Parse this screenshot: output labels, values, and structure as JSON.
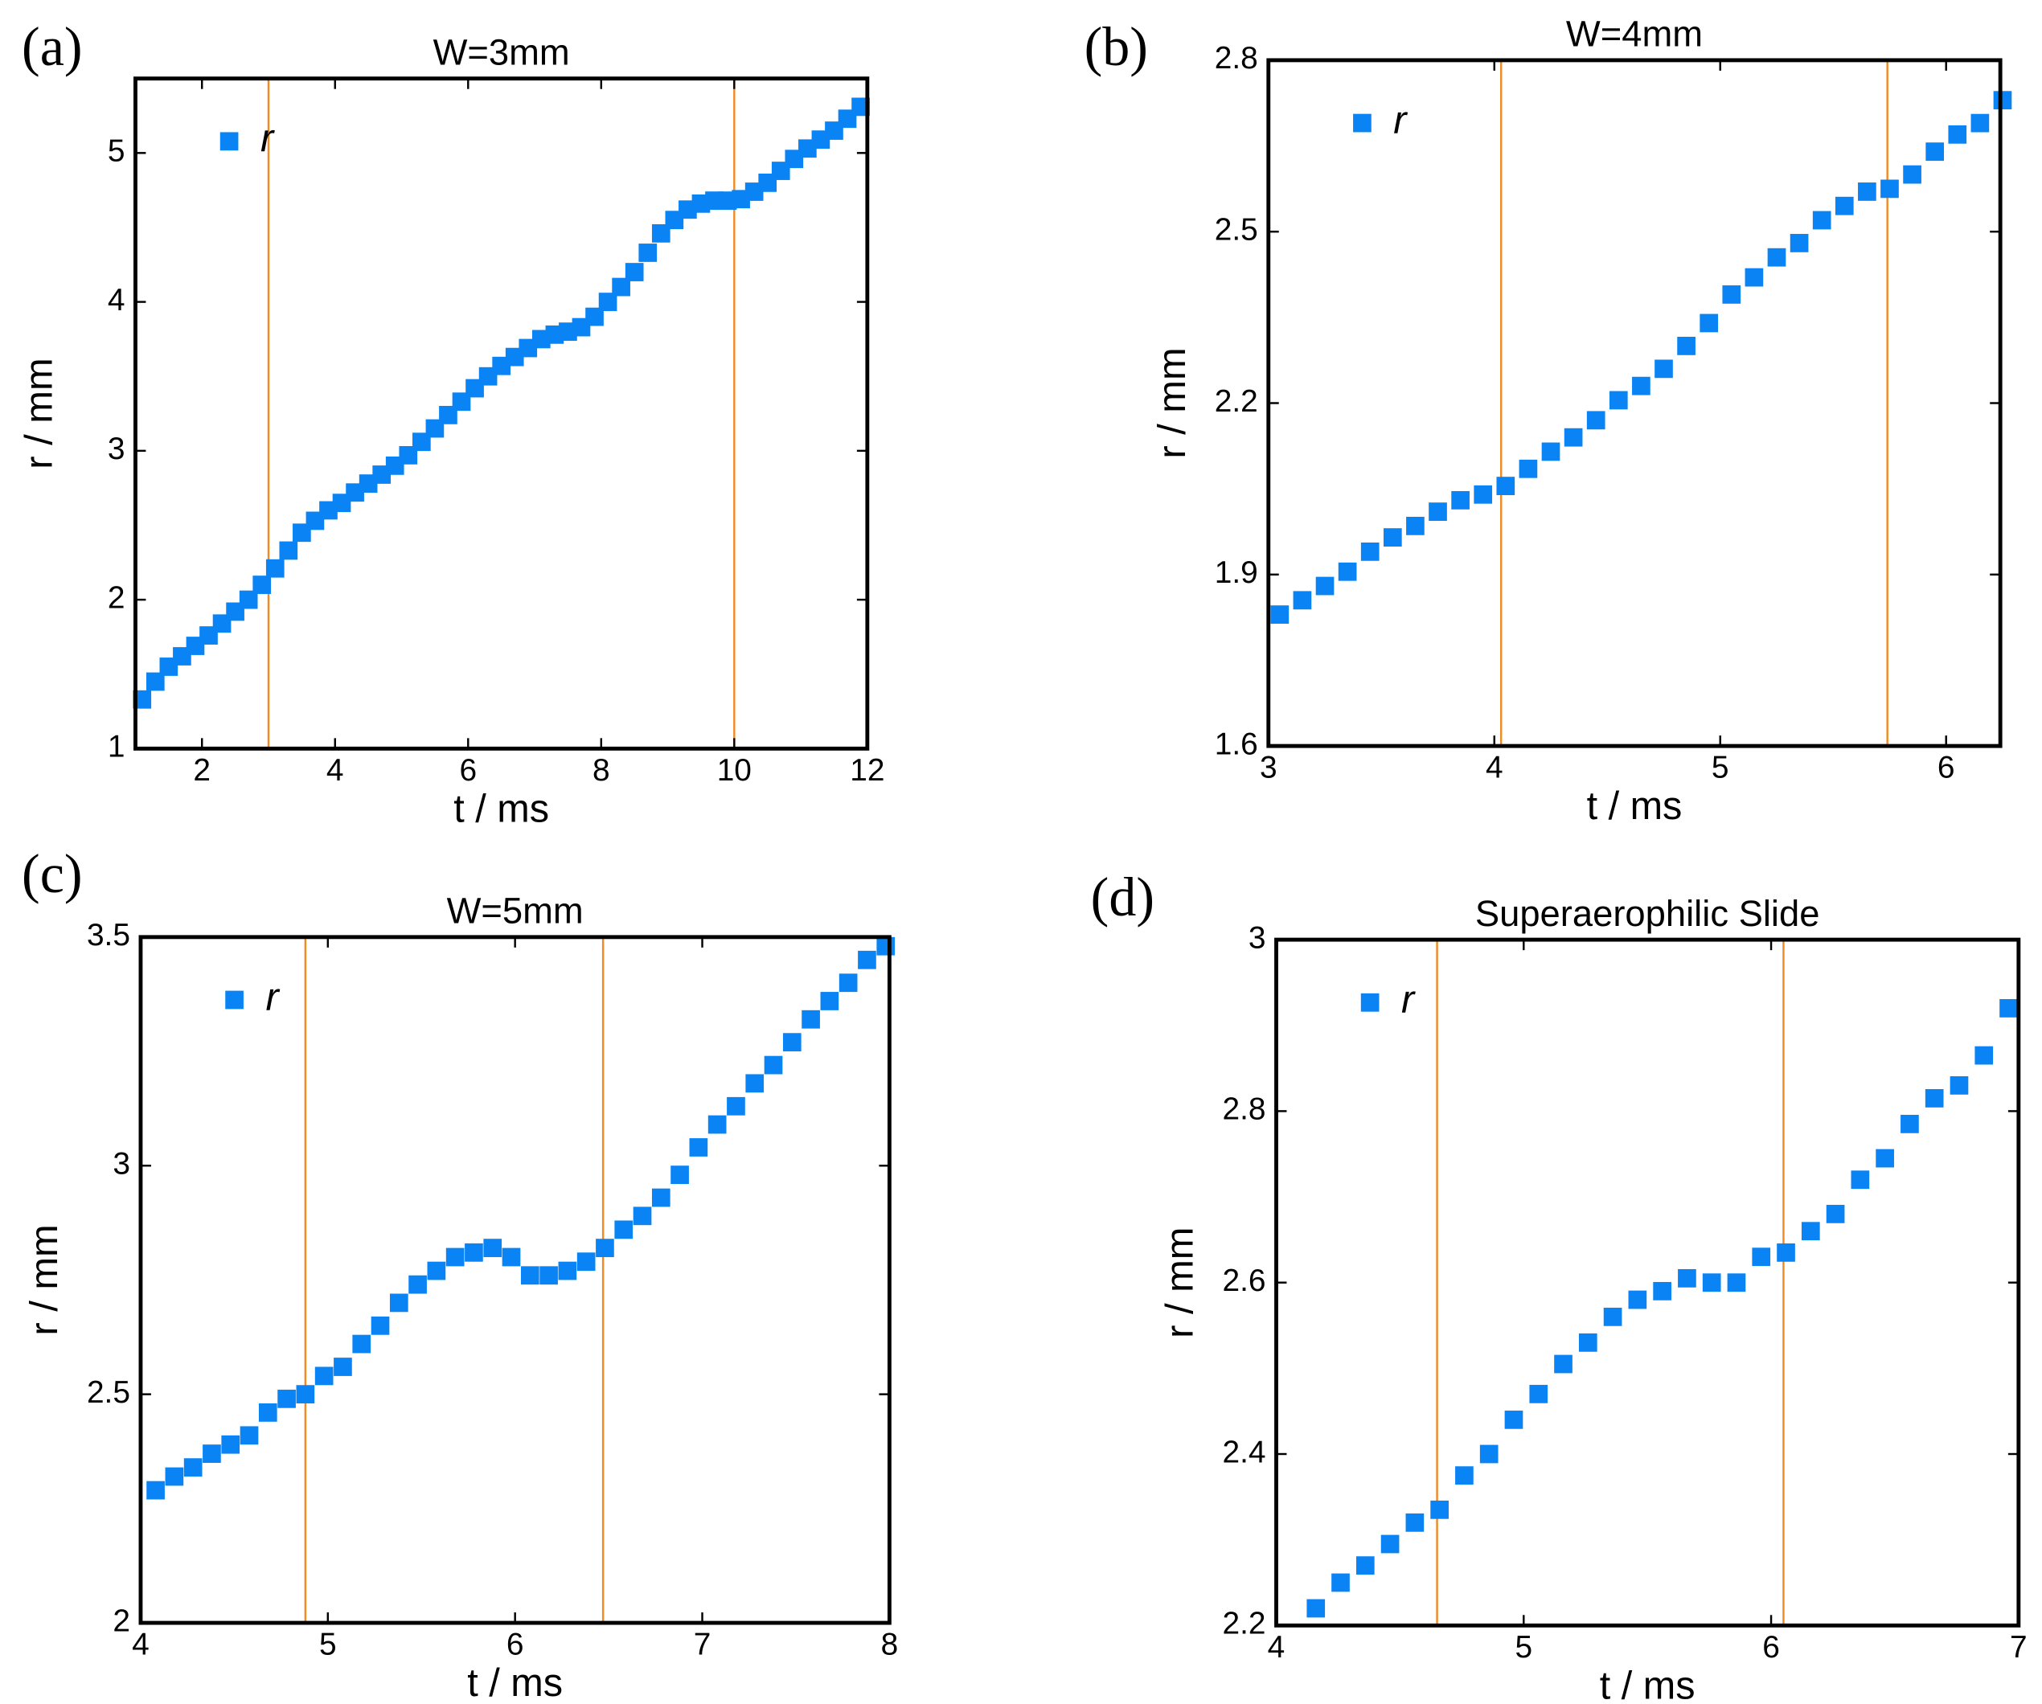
{
  "chart_data": [
    {
      "type": "scatter",
      "panel_label": "(a)",
      "title": "W=3mm",
      "x_label": "t / ms",
      "y_label": "r / mm",
      "xlim": [
        1,
        12
      ],
      "ylim": [
        1,
        5.5
      ],
      "xticks": [
        2,
        4,
        6,
        8,
        10,
        12
      ],
      "yticks": [
        1,
        2,
        3,
        4,
        5
      ],
      "vlines": [
        3,
        10
      ],
      "vline_color": "#f08a24",
      "legend": "upper left",
      "series": [
        {
          "name": "r",
          "color": "#0a84f5",
          "x": [
            1.1,
            1.3,
            1.5,
            1.7,
            1.9,
            2.1,
            2.3,
            2.5,
            2.7,
            2.9,
            3.1,
            3.3,
            3.5,
            3.7,
            3.9,
            4.1,
            4.3,
            4.5,
            4.7,
            4.9,
            5.1,
            5.3,
            5.5,
            5.7,
            5.9,
            6.1,
            6.3,
            6.5,
            6.7,
            6.9,
            7.1,
            7.3,
            7.5,
            7.7,
            7.9,
            8.1,
            8.3,
            8.5,
            8.7,
            8.9,
            9.1,
            9.3,
            9.5,
            9.7,
            9.9,
            10.1,
            10.3,
            10.5,
            10.7,
            10.9,
            11.1,
            11.3,
            11.5,
            11.7,
            11.9
          ],
          "values": [
            1.33,
            1.45,
            1.55,
            1.62,
            1.69,
            1.76,
            1.84,
            1.92,
            2.0,
            2.1,
            2.21,
            2.33,
            2.45,
            2.53,
            2.6,
            2.65,
            2.72,
            2.78,
            2.84,
            2.9,
            2.97,
            3.06,
            3.15,
            3.24,
            3.33,
            3.42,
            3.5,
            3.57,
            3.63,
            3.69,
            3.75,
            3.78,
            3.8,
            3.83,
            3.9,
            4.0,
            4.1,
            4.2,
            4.33,
            4.46,
            4.55,
            4.62,
            4.66,
            4.68,
            4.68,
            4.69,
            4.74,
            4.8,
            4.88,
            4.96,
            5.03,
            5.09,
            5.15,
            5.23,
            5.31
          ]
        }
      ]
    },
    {
      "type": "scatter",
      "panel_label": "(b)",
      "title": "W=4mm",
      "x_label": "t / ms",
      "y_label": "r / mm",
      "xlim": [
        3,
        6.24
      ],
      "ylim": [
        1.6,
        2.8
      ],
      "xticks": [
        3,
        4,
        5,
        6
      ],
      "yticks": [
        1.6,
        1.9,
        2.2,
        2.5,
        2.8
      ],
      "vlines": [
        4.03,
        5.74
      ],
      "vline_color": "#f08a24",
      "legend": "upper left",
      "series": [
        {
          "name": "r",
          "color": "#0a84f5",
          "x": [
            3.05,
            3.15,
            3.25,
            3.35,
            3.45,
            3.55,
            3.65,
            3.75,
            3.85,
            3.95,
            4.05,
            4.15,
            4.25,
            4.35,
            4.45,
            4.55,
            4.65,
            4.75,
            4.85,
            4.95,
            5.05,
            5.15,
            5.25,
            5.35,
            5.45,
            5.55,
            5.65,
            5.75,
            5.85,
            5.95,
            6.05,
            6.15,
            6.25
          ],
          "values": [
            1.83,
            1.855,
            1.88,
            1.905,
            1.94,
            1.965,
            1.985,
            2.01,
            2.03,
            2.04,
            2.055,
            2.085,
            2.115,
            2.14,
            2.17,
            2.205,
            2.23,
            2.26,
            2.3,
            2.34,
            2.39,
            2.42,
            2.455,
            2.48,
            2.52,
            2.545,
            2.57,
            2.575,
            2.6,
            2.64,
            2.67,
            2.69,
            2.73
          ]
        }
      ]
    },
    {
      "type": "scatter",
      "panel_label": "(c)",
      "title": "W=5mm",
      "x_label": "t / ms",
      "y_label": "r / mm",
      "xlim": [
        4,
        8
      ],
      "ylim": [
        2,
        3.5
      ],
      "xticks": [
        4,
        5,
        6,
        7,
        8
      ],
      "yticks": [
        2,
        2.5,
        3,
        3.5
      ],
      "vlines": [
        4.88,
        6.47
      ],
      "vline_color": "#f08a24",
      "legend": "upper left",
      "series": [
        {
          "name": "r",
          "color": "#0a84f5",
          "x": [
            4.08,
            4.18,
            4.28,
            4.38,
            4.48,
            4.58,
            4.68,
            4.78,
            4.88,
            4.98,
            5.08,
            5.18,
            5.28,
            5.38,
            5.48,
            5.58,
            5.68,
            5.78,
            5.88,
            5.98,
            6.08,
            6.18,
            6.28,
            6.38,
            6.48,
            6.58,
            6.68,
            6.78,
            6.88,
            6.98,
            7.08,
            7.18,
            7.28,
            7.38,
            7.48,
            7.58,
            7.68,
            7.78,
            7.88,
            7.98
          ],
          "values": [
            2.29,
            2.32,
            2.34,
            2.37,
            2.39,
            2.41,
            2.46,
            2.49,
            2.5,
            2.54,
            2.56,
            2.61,
            2.65,
            2.7,
            2.74,
            2.77,
            2.8,
            2.81,
            2.82,
            2.8,
            2.76,
            2.76,
            2.77,
            2.79,
            2.82,
            2.86,
            2.89,
            2.93,
            2.98,
            3.04,
            3.09,
            3.13,
            3.18,
            3.22,
            3.27,
            3.32,
            3.36,
            3.4,
            3.45,
            3.48
          ]
        }
      ]
    },
    {
      "type": "scatter",
      "panel_label": "(d)",
      "title": "Superaerophilic Slide",
      "x_label": "t / ms",
      "y_label": "r / mm",
      "xlim": [
        4,
        7
      ],
      "ylim": [
        2.2,
        3
      ],
      "xticks": [
        4,
        5,
        6,
        7
      ],
      "yticks": [
        2.2,
        2.4,
        2.6,
        2.8,
        3
      ],
      "vlines": [
        4.65,
        6.05
      ],
      "vline_color": "#f08a24",
      "legend": "upper left",
      "series": [
        {
          "name": "r",
          "color": "#0a84f5",
          "x": [
            4.16,
            4.26,
            4.36,
            4.46,
            4.56,
            4.66,
            4.76,
            4.86,
            4.96,
            5.06,
            5.16,
            5.26,
            5.36,
            5.46,
            5.56,
            5.66,
            5.76,
            5.86,
            5.96,
            6.06,
            6.16,
            6.26,
            6.36,
            6.46,
            6.56,
            6.66,
            6.76,
            6.86,
            6.96
          ],
          "values": [
            2.22,
            2.25,
            2.27,
            2.295,
            2.32,
            2.335,
            2.375,
            2.4,
            2.44,
            2.47,
            2.505,
            2.53,
            2.56,
            2.58,
            2.59,
            2.605,
            2.6,
            2.6,
            2.63,
            2.635,
            2.66,
            2.68,
            2.72,
            2.745,
            2.785,
            2.815,
            2.83,
            2.865,
            2.92
          ]
        }
      ]
    }
  ]
}
